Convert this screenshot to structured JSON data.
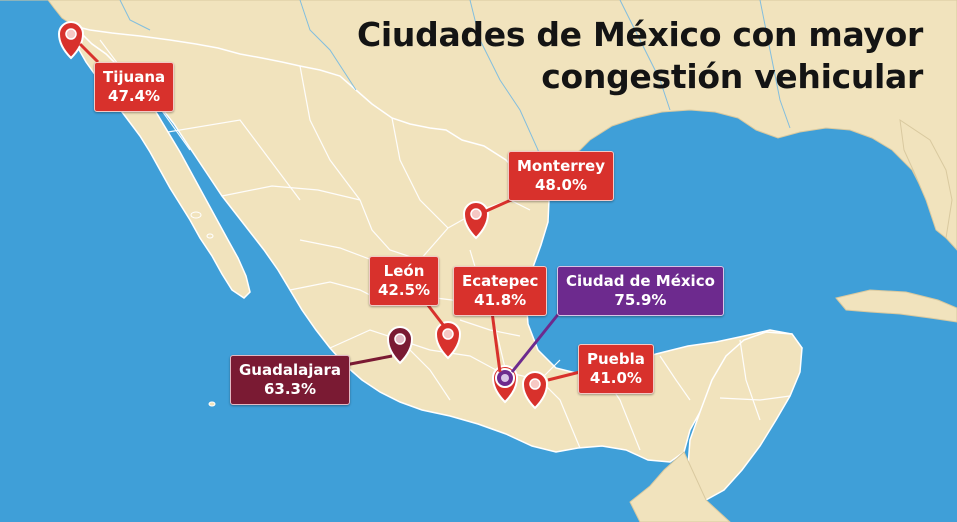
{
  "title": {
    "line1": "Ciudades de México con mayor",
    "line2": "congestión vehicular"
  },
  "colors": {
    "sea": "#3f9fd8",
    "land": "#f1e3bd",
    "border": "#ffffff",
    "marker_red": "#d8312c",
    "marker_wine": "#7a1a33",
    "marker_purple": "#6d2a8e"
  },
  "cities": [
    {
      "name": "Tijuana",
      "value": "47.4%",
      "color": "red"
    },
    {
      "name": "Monterrey",
      "value": "48.0%",
      "color": "red"
    },
    {
      "name": "León",
      "value": "42.5%",
      "color": "red"
    },
    {
      "name": "Ecatepec",
      "value": "41.8%",
      "color": "red"
    },
    {
      "name": "Ciudad de México",
      "value": "75.9%",
      "color": "purple"
    },
    {
      "name": "Guadalajara",
      "value": "63.3%",
      "color": "wine"
    },
    {
      "name": "Puebla",
      "value": "41.0%",
      "color": "red"
    }
  ]
}
